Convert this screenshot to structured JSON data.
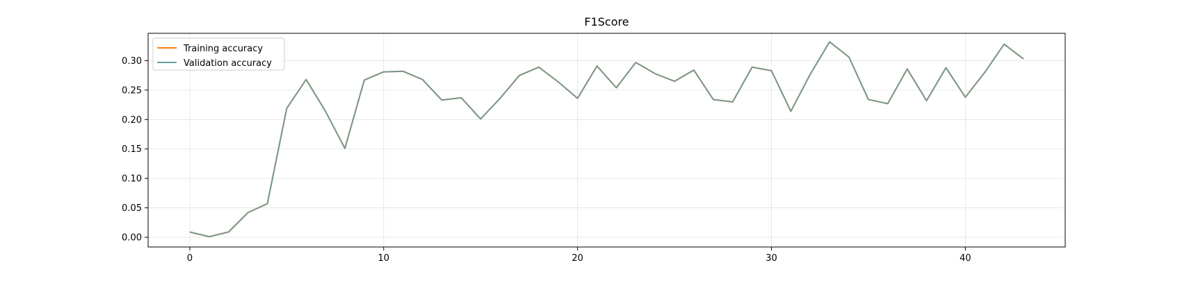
{
  "chart_data": {
    "type": "line",
    "title": "F1Score",
    "xlabel": "",
    "ylabel": "",
    "xlim": [
      -2.15,
      45.15
    ],
    "ylim": [
      -0.0165,
      0.3465
    ],
    "xticks": [
      0,
      10,
      20,
      30,
      40
    ],
    "yticks": [
      0.0,
      0.05,
      0.1,
      0.15,
      0.2,
      0.25,
      0.3
    ],
    "grid": true,
    "legend_position": "top-left",
    "series": [
      {
        "name": "Training accuracy",
        "color": "#ff7f0e",
        "x": [
          0,
          1,
          2,
          3,
          4,
          5,
          6,
          7,
          8,
          9,
          10,
          11,
          12,
          13,
          14,
          15,
          16,
          17,
          18,
          19,
          20,
          21,
          22,
          23,
          24,
          25,
          26,
          27,
          28,
          29,
          30,
          31,
          32,
          33,
          34,
          35,
          36,
          37,
          38,
          39,
          40,
          41,
          42,
          43
        ],
        "values": [
          0.009,
          0.001,
          0.009,
          0.042,
          0.057,
          0.219,
          0.268,
          0.214,
          0.151,
          0.267,
          0.281,
          0.282,
          0.268,
          0.233,
          0.237,
          0.201,
          0.236,
          0.275,
          0.289,
          0.264,
          0.236,
          0.291,
          0.254,
          0.297,
          0.278,
          0.265,
          0.284,
          0.234,
          0.23,
          0.289,
          0.283,
          0.214,
          0.277,
          0.332,
          0.306,
          0.234,
          0.227,
          0.286,
          0.232,
          0.288,
          0.238,
          0.28,
          0.328,
          0.303
        ]
      },
      {
        "name": "Validation accuracy",
        "color": "#5f9ea0",
        "x": [
          0,
          1,
          2,
          3,
          4,
          5,
          6,
          7,
          8,
          9,
          10,
          11,
          12,
          13,
          14,
          15,
          16,
          17,
          18,
          19,
          20,
          21,
          22,
          23,
          24,
          25,
          26,
          27,
          28,
          29,
          30,
          31,
          32,
          33,
          34,
          35,
          36,
          37,
          38,
          39,
          40,
          41,
          42,
          43
        ],
        "values": [
          0.009,
          0.001,
          0.009,
          0.042,
          0.057,
          0.219,
          0.268,
          0.214,
          0.151,
          0.267,
          0.281,
          0.282,
          0.268,
          0.233,
          0.237,
          0.201,
          0.236,
          0.275,
          0.289,
          0.264,
          0.236,
          0.291,
          0.254,
          0.297,
          0.278,
          0.265,
          0.284,
          0.234,
          0.23,
          0.289,
          0.283,
          0.214,
          0.277,
          0.332,
          0.306,
          0.234,
          0.227,
          0.286,
          0.232,
          0.288,
          0.238,
          0.28,
          0.328,
          0.303
        ]
      }
    ]
  }
}
